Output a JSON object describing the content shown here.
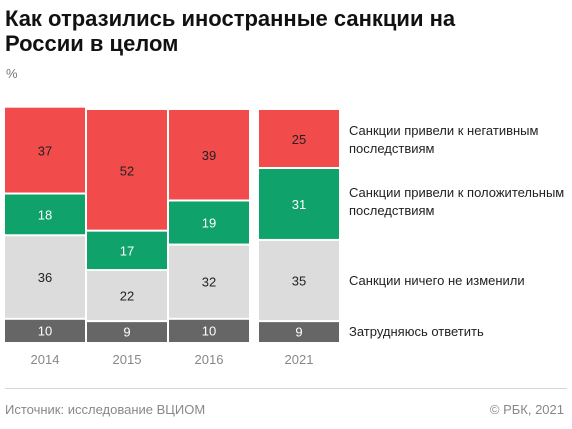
{
  "title": "Как отразились иностранные санкции на России в целом",
  "unit": "%",
  "source": "Источник: исследование ВЦИОМ",
  "copyright": "© РБК, 2021",
  "colors": {
    "negative": "#f24b4b",
    "positive": "#0fa36b",
    "no_change": "#dcdcdc",
    "hard_to_say": "#666666"
  },
  "chart_data": {
    "type": "bar",
    "stacked": true,
    "categories": [
      "2014",
      "2015",
      "2016",
      "2021"
    ],
    "series": [
      {
        "name": "Затрудняюсь ответить",
        "key": "hard_to_say",
        "values": [
          10,
          9,
          10,
          9
        ]
      },
      {
        "name": "Санкции ничего не изменили",
        "key": "no_change",
        "values": [
          36,
          22,
          32,
          35
        ]
      },
      {
        "name": "Санкции привели к положительным последствиям",
        "key": "positive",
        "values": [
          18,
          17,
          19,
          31
        ]
      },
      {
        "name": "Санкции привели к негативным последствиям",
        "key": "negative",
        "values": [
          37,
          52,
          39,
          25
        ]
      }
    ],
    "legend": [
      {
        "label": "Санкции привели к негативным последствиям",
        "key": "negative"
      },
      {
        "label": "Санкции привели к положительным последствиям",
        "key": "positive"
      },
      {
        "label": "Санкции ничего не изменили",
        "key": "no_change"
      },
      {
        "label": "Затрудняюсь ответить",
        "key": "hard_to_say"
      }
    ],
    "ylim": [
      0,
      100
    ],
    "legend_position": "right"
  }
}
